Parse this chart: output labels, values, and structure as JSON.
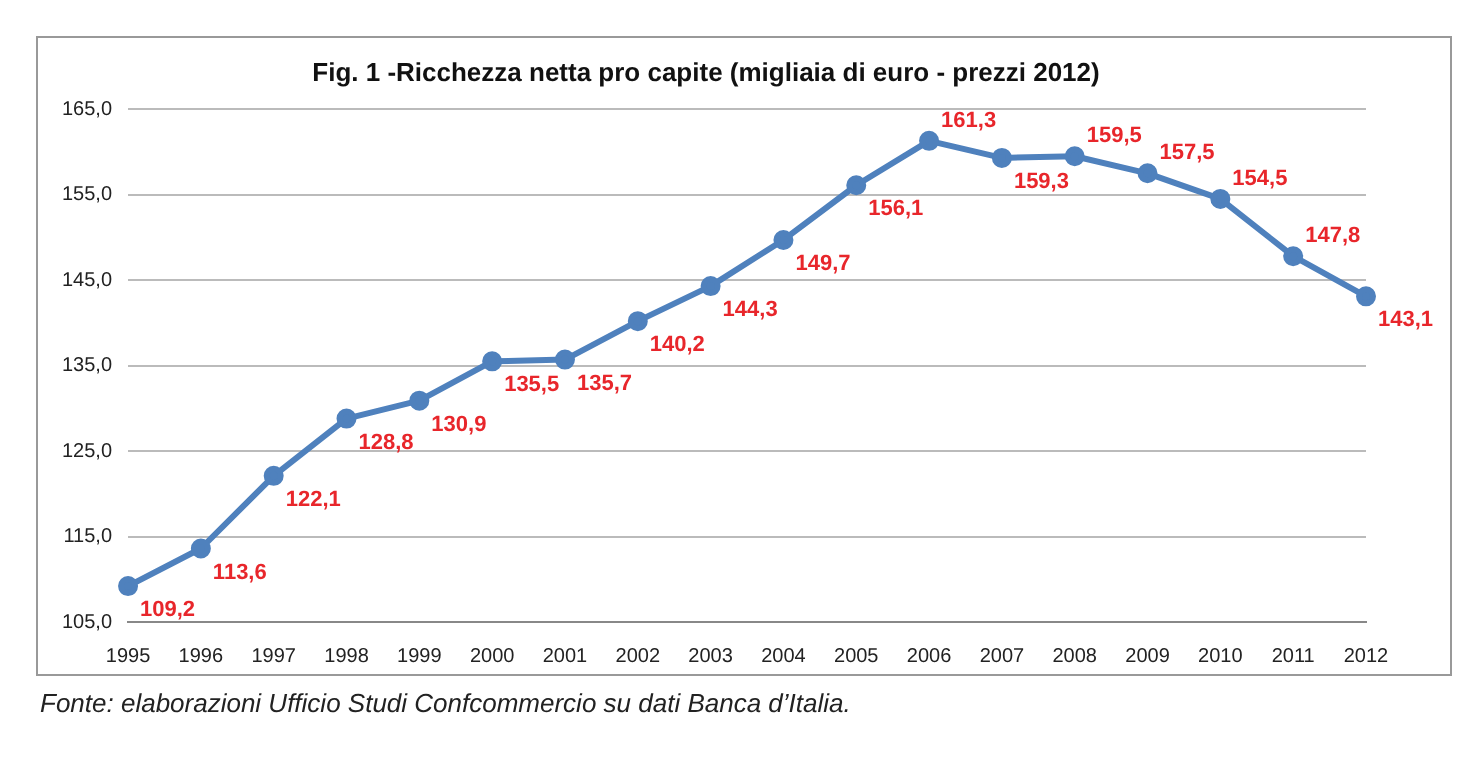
{
  "chart_data": {
    "type": "line",
    "title": "Fig. 1 -Ricchezza netta pro capite (migliaia di euro - prezzi 2012)",
    "categories": [
      "1995",
      "1996",
      "1997",
      "1998",
      "1999",
      "2000",
      "2001",
      "2002",
      "2003",
      "2004",
      "2005",
      "2006",
      "2007",
      "2008",
      "2009",
      "2010",
      "2011",
      "2012"
    ],
    "series": [
      {
        "color": "#4f81bd",
        "values": [
          109.2,
          113.6,
          122.1,
          128.8,
          130.9,
          135.5,
          135.7,
          140.2,
          144.3,
          149.7,
          156.1,
          161.3,
          159.3,
          159.5,
          157.5,
          154.5,
          147.8,
          143.1
        ],
        "value_labels": [
          "109,2",
          "113,6",
          "122,1",
          "128,8",
          "130,9",
          "135,5",
          "135,7",
          "140,2",
          "144,3",
          "149,7",
          "156,1",
          "161,3",
          "159,3",
          "159,5",
          "157,5",
          "154,5",
          "147,8",
          "143,1"
        ]
      }
    ],
    "ylim": [
      105,
      165
    ],
    "yticks": [
      {
        "value": 105,
        "label": "105,0"
      },
      {
        "value": 115,
        "label": "115,0"
      },
      {
        "value": 125,
        "label": "125,0"
      },
      {
        "value": 135,
        "label": "135,0"
      },
      {
        "value": 145,
        "label": "145,0"
      },
      {
        "value": 155,
        "label": "155,0"
      },
      {
        "value": 165,
        "label": "165,0"
      }
    ],
    "grid": "y",
    "legend": false,
    "marker": "circle",
    "line_style": "solid",
    "annotations": [
      "Fonte: elaborazioni Ufficio Studi Confcommercio su dati Banca d’Italia."
    ]
  }
}
